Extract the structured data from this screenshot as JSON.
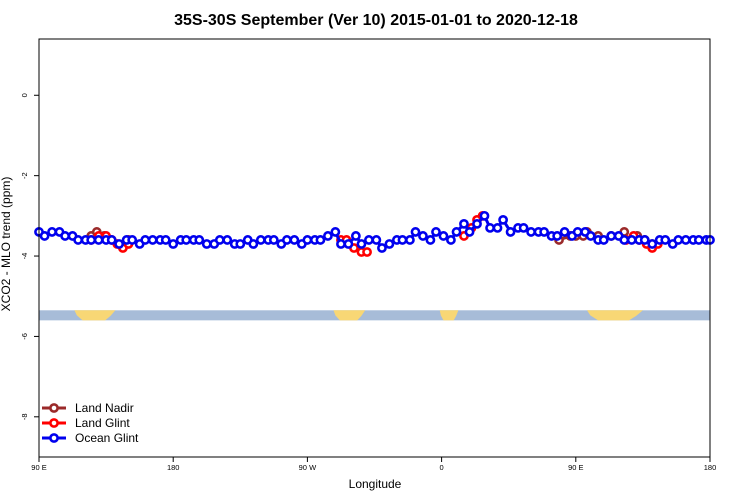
{
  "chart_data": {
    "type": "line",
    "title": "35S-30S September (Ver 10)   2015-01-01 to 2020-12-18",
    "xlabel": "Longitude",
    "ylabel": "XCO2 - MLO trend (ppm)",
    "xlim": [
      90,
      450
    ],
    "ylim": [
      -9.0,
      1.4
    ],
    "x_ticks": [
      {
        "value": 90,
        "label": "90 E"
      },
      {
        "value": 162,
        "label": "180"
      },
      {
        "value": 234,
        "label": "90 W"
      },
      {
        "value": 306,
        "label": "0"
      },
      {
        "value": 378,
        "label": "90 E"
      },
      {
        "value": 450,
        "label": "180"
      }
    ],
    "y_ticks": [
      {
        "value": 0,
        "label": "0"
      },
      {
        "value": -2,
        "label": "-2"
      },
      {
        "value": -4,
        "label": "-4"
      },
      {
        "value": -6,
        "label": "-6"
      },
      {
        "value": -8,
        "label": "-8"
      }
    ],
    "grid": false,
    "legend_position": "bottom-left",
    "land_band": {
      "y_top": -5.35,
      "y_bottom": -5.6,
      "ocean_color": "#a7bcd8",
      "land_color": "#f8d775",
      "land_segments": [
        [
          109,
          131
        ],
        [
          248,
          265
        ],
        [
          305,
          315
        ],
        [
          384,
          414
        ]
      ]
    },
    "series": [
      {
        "name": "Land Nadir",
        "color": "#9b2a2a",
        "points": [
          [
            118.0,
            -3.5
          ],
          [
            121.0,
            -3.4
          ],
          [
            125.0,
            -3.5
          ],
          [
            138.0,
            -3.6
          ],
          [
            369.0,
            -3.6
          ],
          [
            375.0,
            -3.5
          ],
          [
            378.0,
            -3.5
          ],
          [
            382.0,
            -3.5
          ],
          [
            384.0,
            -3.4
          ],
          [
            390.0,
            -3.5
          ],
          [
            397.0,
            -3.5
          ],
          [
            404.0,
            -3.4
          ],
          [
            411.0,
            -3.5
          ],
          [
            415.0,
            -3.6
          ],
          [
            419.0,
            -3.7
          ]
        ]
      },
      {
        "name": "Land Glint",
        "color": "#ff0000",
        "points": [
          [
            118.0,
            -3.6
          ],
          [
            122.0,
            -3.5
          ],
          [
            126.0,
            -3.5
          ],
          [
            129.0,
            -3.6
          ],
          [
            132.0,
            -3.7
          ],
          [
            135.0,
            -3.8
          ],
          [
            138.0,
            -3.7
          ],
          [
            252.0,
            -3.6
          ],
          [
            255.0,
            -3.6
          ],
          [
            259.0,
            -3.8
          ],
          [
            263.0,
            -3.9
          ],
          [
            266.0,
            -3.9
          ],
          [
            318.0,
            -3.5
          ],
          [
            322.0,
            -3.3
          ],
          [
            325.0,
            -3.1
          ],
          [
            328.0,
            -3.0
          ],
          [
            405.0,
            -3.6
          ],
          [
            409.0,
            -3.5
          ],
          [
            412.0,
            -3.6
          ],
          [
            416.0,
            -3.7
          ],
          [
            419.0,
            -3.8
          ],
          [
            422.0,
            -3.7
          ]
        ]
      },
      {
        "name": "Ocean Glint",
        "color": "#0000ee",
        "points": [
          [
            90.0,
            -3.4
          ],
          [
            93.0,
            -3.5
          ],
          [
            97.0,
            -3.4
          ],
          [
            101.0,
            -3.4
          ],
          [
            104.0,
            -3.5
          ],
          [
            108.0,
            -3.5
          ],
          [
            111.0,
            -3.6
          ],
          [
            115.0,
            -3.6
          ],
          [
            118.0,
            -3.6
          ],
          [
            122.0,
            -3.6
          ],
          [
            126.0,
            -3.6
          ],
          [
            129.0,
            -3.6
          ],
          [
            133.0,
            -3.7
          ],
          [
            137.0,
            -3.6
          ],
          [
            140.0,
            -3.6
          ],
          [
            144.0,
            -3.7
          ],
          [
            147.0,
            -3.6
          ],
          [
            151.0,
            -3.6
          ],
          [
            155.0,
            -3.6
          ],
          [
            158.0,
            -3.6
          ],
          [
            162.0,
            -3.7
          ],
          [
            166.0,
            -3.6
          ],
          [
            169.0,
            -3.6
          ],
          [
            173.0,
            -3.6
          ],
          [
            176.0,
            -3.6
          ],
          [
            180.0,
            -3.7
          ],
          [
            184.0,
            -3.7
          ],
          [
            187.0,
            -3.6
          ],
          [
            191.0,
            -3.6
          ],
          [
            195.0,
            -3.7
          ],
          [
            198.0,
            -3.7
          ],
          [
            202.0,
            -3.6
          ],
          [
            205.0,
            -3.7
          ],
          [
            209.0,
            -3.6
          ],
          [
            213.0,
            -3.6
          ],
          [
            216.0,
            -3.6
          ],
          [
            220.0,
            -3.7
          ],
          [
            223.0,
            -3.6
          ],
          [
            227.0,
            -3.6
          ],
          [
            231.0,
            -3.7
          ],
          [
            234.0,
            -3.6
          ],
          [
            238.0,
            -3.6
          ],
          [
            241.0,
            -3.6
          ],
          [
            245.0,
            -3.5
          ],
          [
            249.0,
            -3.4
          ],
          [
            252.0,
            -3.7
          ],
          [
            256.0,
            -3.7
          ],
          [
            260.0,
            -3.5
          ],
          [
            263.0,
            -3.7
          ],
          [
            267.0,
            -3.6
          ],
          [
            271.0,
            -3.6
          ],
          [
            274.0,
            -3.8
          ],
          [
            278.0,
            -3.7
          ],
          [
            282.0,
            -3.6
          ],
          [
            285.0,
            -3.6
          ],
          [
            289.0,
            -3.6
          ],
          [
            292.0,
            -3.4
          ],
          [
            296.0,
            -3.5
          ],
          [
            300.0,
            -3.6
          ],
          [
            303.0,
            -3.4
          ],
          [
            307.0,
            -3.5
          ],
          [
            311.0,
            -3.6
          ],
          [
            314.0,
            -3.4
          ],
          [
            318.0,
            -3.2
          ],
          [
            321.0,
            -3.4
          ],
          [
            325.0,
            -3.2
          ],
          [
            329.0,
            -3.0
          ],
          [
            332.0,
            -3.3
          ],
          [
            336.0,
            -3.3
          ],
          [
            339.0,
            -3.1
          ],
          [
            343.0,
            -3.4
          ],
          [
            347.0,
            -3.3
          ],
          [
            350.0,
            -3.3
          ],
          [
            354.0,
            -3.4
          ],
          [
            358.0,
            -3.4
          ],
          [
            361.0,
            -3.4
          ],
          [
            365.0,
            -3.5
          ],
          [
            368.0,
            -3.5
          ],
          [
            372.0,
            -3.4
          ],
          [
            376.0,
            -3.5
          ],
          [
            379.0,
            -3.4
          ],
          [
            383.0,
            -3.4
          ],
          [
            386.0,
            -3.5
          ],
          [
            390.0,
            -3.6
          ],
          [
            393.0,
            -3.6
          ],
          [
            397.0,
            -3.5
          ],
          [
            401.0,
            -3.5
          ],
          [
            404.0,
            -3.6
          ],
          [
            408.0,
            -3.6
          ],
          [
            412.0,
            -3.6
          ],
          [
            415.0,
            -3.6
          ],
          [
            419.0,
            -3.7
          ],
          [
            423.0,
            -3.6
          ],
          [
            426.0,
            -3.6
          ],
          [
            430.0,
            -3.7
          ],
          [
            433.0,
            -3.6
          ],
          [
            437.0,
            -3.6
          ],
          [
            441.0,
            -3.6
          ],
          [
            444.0,
            -3.6
          ],
          [
            448.0,
            -3.6
          ],
          [
            450.0,
            -3.6
          ]
        ]
      }
    ]
  }
}
